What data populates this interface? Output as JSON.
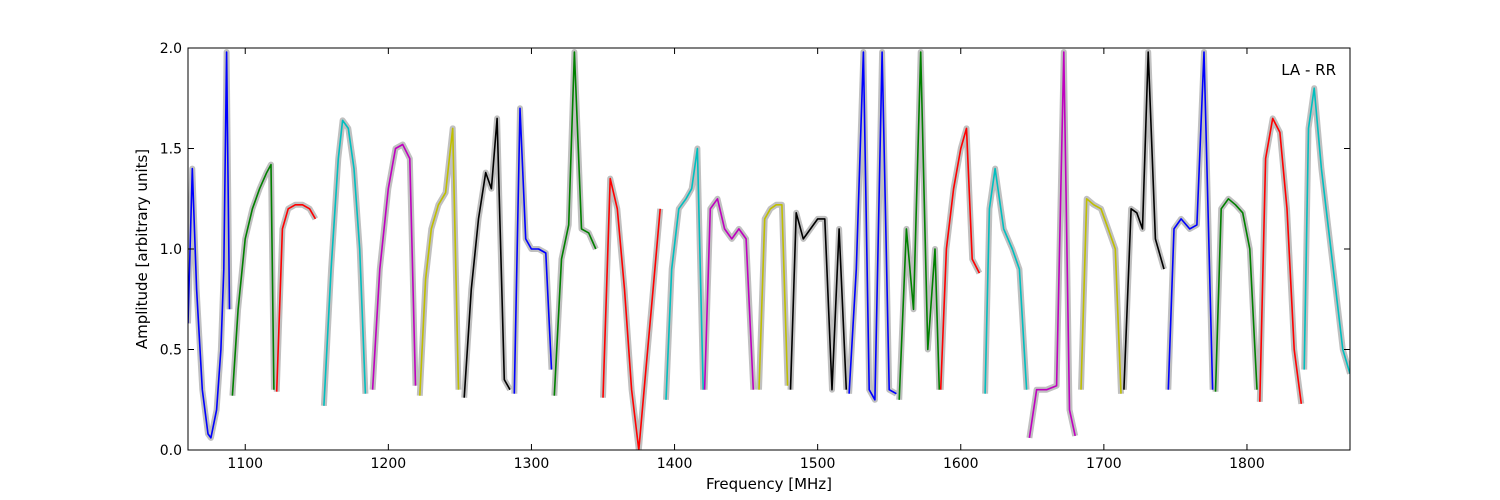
{
  "chart_data": {
    "type": "line",
    "title": "",
    "annotation": "LA - RR",
    "xlabel": "Frequency [MHz]",
    "ylabel": "Amplitude [arbitrary units]",
    "xlim": [
      1060,
      1872
    ],
    "ylim": [
      0.0,
      2.0
    ],
    "xticks": [
      1100,
      1200,
      1300,
      1400,
      1500,
      1600,
      1700,
      1800
    ],
    "xtick_labels": [
      "1100",
      "1200",
      "1300",
      "1400",
      "1500",
      "1600",
      "1700",
      "1800"
    ],
    "yticks": [
      0.0,
      0.5,
      1.0,
      1.5,
      2.0
    ],
    "ytick_labels": [
      "0.0",
      "0.5",
      "1.0",
      "1.5",
      "2.0"
    ],
    "grid": false,
    "background_color": "#c0c0c0",
    "segments": [
      {
        "color": "#0000ff",
        "x": [
          1060,
          1063,
          1066,
          1070,
          1074,
          1076,
          1080,
          1083,
          1085,
          1087,
          1089
        ],
        "y": [
          0.63,
          1.4,
          0.8,
          0.3,
          0.08,
          0.06,
          0.2,
          0.5,
          0.9,
          1.98,
          0.7
        ]
      },
      {
        "color": "#008000",
        "x": [
          1091,
          1095,
          1100,
          1105,
          1110,
          1115,
          1118,
          1120
        ],
        "y": [
          0.27,
          0.7,
          1.05,
          1.2,
          1.3,
          1.38,
          1.42,
          0.3
        ]
      },
      {
        "color": "#ff0000",
        "x": [
          1122,
          1126,
          1130,
          1135,
          1140,
          1145,
          1149
        ],
        "y": [
          0.29,
          1.1,
          1.2,
          1.22,
          1.22,
          1.2,
          1.15
        ]
      },
      {
        "color": "#00bfbf",
        "x": [
          1155,
          1160,
          1165,
          1168,
          1172,
          1176,
          1180,
          1184
        ],
        "y": [
          0.22,
          0.9,
          1.45,
          1.64,
          1.6,
          1.4,
          1.0,
          0.28
        ]
      },
      {
        "color": "#bf00bf",
        "x": [
          1189,
          1194,
          1200,
          1205,
          1210,
          1215,
          1219
        ],
        "y": [
          0.3,
          0.9,
          1.3,
          1.5,
          1.52,
          1.45,
          0.32
        ]
      },
      {
        "color": "#bfbf00",
        "x": [
          1222,
          1226,
          1230,
          1235,
          1240,
          1245,
          1249
        ],
        "y": [
          0.27,
          0.85,
          1.1,
          1.22,
          1.28,
          1.6,
          0.3
        ]
      },
      {
        "color": "#000000",
        "x": [
          1253,
          1258,
          1263,
          1268,
          1272,
          1276,
          1281,
          1285
        ],
        "y": [
          0.26,
          0.8,
          1.15,
          1.38,
          1.3,
          1.65,
          0.35,
          0.3
        ]
      },
      {
        "color": "#0000ff",
        "x": [
          1288,
          1292,
          1296,
          1300,
          1305,
          1310,
          1314
        ],
        "y": [
          0.28,
          1.7,
          1.05,
          1.0,
          1.0,
          0.98,
          0.4
        ]
      },
      {
        "color": "#008000",
        "x": [
          1316,
          1321,
          1326,
          1330,
          1335,
          1340,
          1345
        ],
        "y": [
          0.27,
          0.95,
          1.12,
          1.98,
          1.1,
          1.08,
          1.0
        ]
      },
      {
        "color": "#ff0000",
        "x": [
          1350,
          1355,
          1360,
          1365,
          1370,
          1375,
          1380,
          1385,
          1390
        ],
        "y": [
          0.26,
          1.35,
          1.2,
          0.8,
          0.3,
          0.0,
          0.4,
          0.8,
          1.2
        ]
      },
      {
        "color": "#00bfbf",
        "x": [
          1394,
          1398,
          1403,
          1408,
          1412,
          1416,
          1420
        ],
        "y": [
          0.25,
          0.9,
          1.2,
          1.25,
          1.3,
          1.5,
          0.3
        ]
      },
      {
        "color": "#bf00bf",
        "x": [
          1421,
          1425,
          1430,
          1435,
          1440,
          1445,
          1450,
          1455
        ],
        "y": [
          0.3,
          1.2,
          1.25,
          1.1,
          1.05,
          1.1,
          1.05,
          0.3
        ]
      },
      {
        "color": "#bfbf00",
        "x": [
          1459,
          1463,
          1467,
          1471,
          1475,
          1479
        ],
        "y": [
          0.3,
          1.15,
          1.2,
          1.22,
          1.22,
          0.32
        ]
      },
      {
        "color": "#000000",
        "x": [
          1481,
          1485,
          1490,
          1495,
          1500,
          1505,
          1510,
          1515,
          1520
        ],
        "y": [
          0.3,
          1.18,
          1.05,
          1.1,
          1.15,
          1.15,
          0.3,
          1.1,
          0.3
        ]
      },
      {
        "color": "#0000ff",
        "x": [
          1522,
          1527,
          1532,
          1536,
          1540,
          1545,
          1550,
          1555
        ],
        "y": [
          0.28,
          0.9,
          1.98,
          0.3,
          0.25,
          1.98,
          0.3,
          0.28
        ]
      },
      {
        "color": "#008000",
        "x": [
          1557,
          1562,
          1567,
          1572,
          1577,
          1582,
          1585
        ],
        "y": [
          0.25,
          1.1,
          0.7,
          1.98,
          0.5,
          1.0,
          0.3
        ]
      },
      {
        "color": "#ff0000",
        "x": [
          1586,
          1590,
          1595,
          1600,
          1604,
          1608,
          1613
        ],
        "y": [
          0.3,
          1.0,
          1.3,
          1.5,
          1.6,
          0.95,
          0.88
        ]
      },
      {
        "color": "#00bfbf",
        "x": [
          1617,
          1620,
          1624,
          1630,
          1636,
          1641,
          1646
        ],
        "y": [
          0.28,
          1.2,
          1.4,
          1.1,
          1.0,
          0.9,
          0.3
        ]
      },
      {
        "color": "#bf00bf",
        "x": [
          1648,
          1653,
          1660,
          1667,
          1672,
          1676,
          1680
        ],
        "y": [
          0.06,
          0.3,
          0.3,
          0.32,
          1.98,
          0.2,
          0.07
        ]
      },
      {
        "color": "#bfbf00",
        "x": [
          1684,
          1688,
          1693,
          1698,
          1703,
          1708,
          1712
        ],
        "y": [
          0.3,
          1.25,
          1.22,
          1.2,
          1.1,
          1.0,
          0.28
        ]
      },
      {
        "color": "#000000",
        "x": [
          1714,
          1719,
          1723,
          1727,
          1731,
          1736,
          1742
        ],
        "y": [
          0.3,
          1.2,
          1.18,
          1.1,
          1.98,
          1.05,
          0.9
        ]
      },
      {
        "color": "#0000ff",
        "x": [
          1745,
          1749,
          1754,
          1760,
          1765,
          1770,
          1776
        ],
        "y": [
          0.3,
          1.1,
          1.15,
          1.1,
          1.12,
          1.98,
          0.3
        ]
      },
      {
        "color": "#008000",
        "x": [
          1778,
          1782,
          1787,
          1792,
          1797,
          1802,
          1807
        ],
        "y": [
          0.29,
          1.2,
          1.25,
          1.22,
          1.18,
          1.0,
          0.3
        ]
      },
      {
        "color": "#ff0000",
        "x": [
          1809,
          1813,
          1818,
          1823,
          1828,
          1833,
          1838
        ],
        "y": [
          0.24,
          1.45,
          1.65,
          1.58,
          1.2,
          0.5,
          0.23
        ]
      },
      {
        "color": "#00bfbf",
        "x": [
          1840,
          1843,
          1847,
          1852,
          1857,
          1862,
          1867,
          1872
        ],
        "y": [
          0.4,
          1.6,
          1.8,
          1.4,
          1.1,
          0.8,
          0.5,
          0.38
        ]
      }
    ]
  }
}
